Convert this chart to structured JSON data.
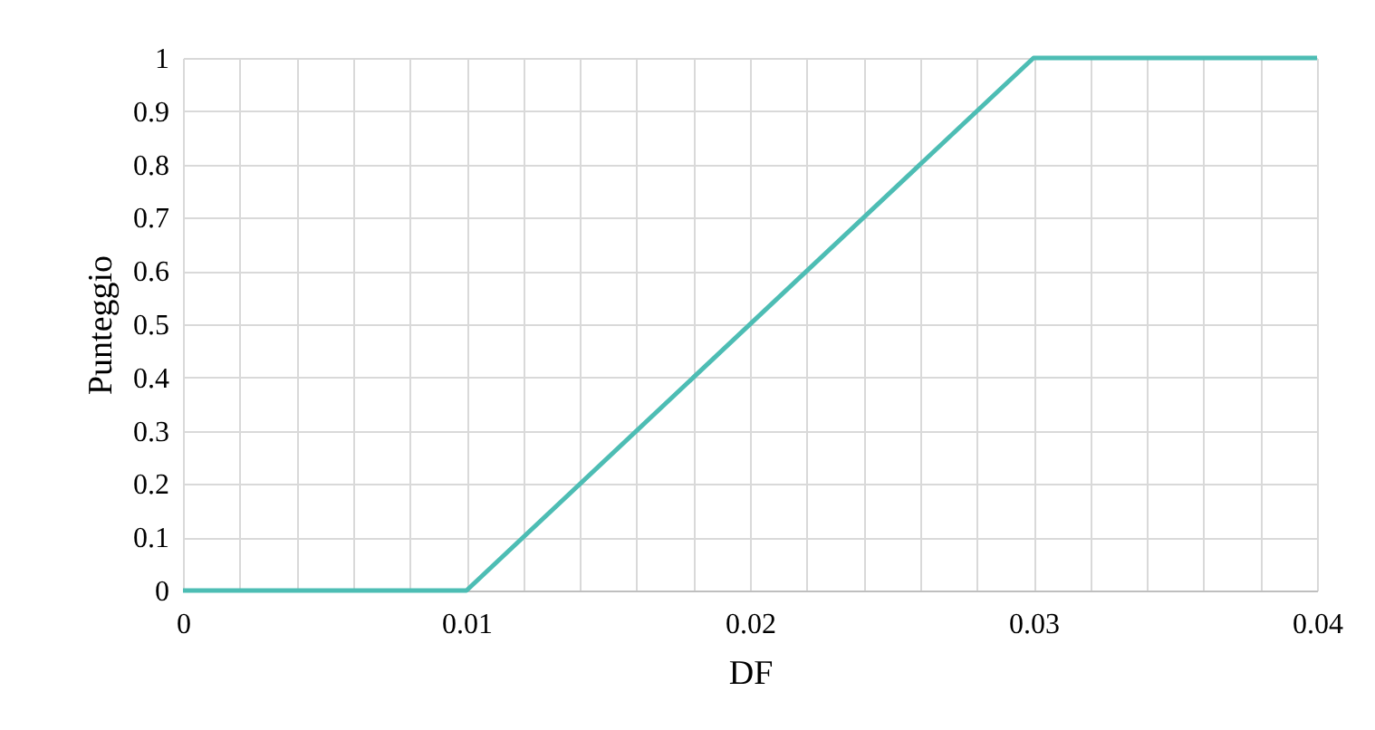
{
  "chart_data": {
    "type": "line",
    "xlabel": "DF",
    "ylabel": "Punteggio",
    "x": [
      0,
      0.01,
      0.03,
      0.04
    ],
    "series": [
      {
        "color": "#4dbdb4",
        "values": [
          0,
          0,
          1,
          1
        ]
      }
    ],
    "xlim": [
      0,
      0.04
    ],
    "xticks": [
      0,
      {
        "value": 0.002,
        "label": null
      },
      {
        "value": 0.004,
        "label": null
      },
      {
        "value": 0.006,
        "label": null
      },
      {
        "value": 0.008,
        "label": null
      },
      0.01,
      {
        "value": 0.012,
        "label": null
      },
      {
        "value": 0.014,
        "label": null
      },
      {
        "value": 0.016,
        "label": null
      },
      {
        "value": 0.018,
        "label": null
      },
      0.02,
      {
        "value": 0.022,
        "label": null
      },
      {
        "value": 0.024,
        "label": null
      },
      {
        "value": 0.026,
        "label": null
      },
      {
        "value": 0.028,
        "label": null
      },
      0.03,
      {
        "value": 0.032,
        "label": null
      },
      {
        "value": 0.034,
        "label": null
      },
      {
        "value": 0.036,
        "label": null
      },
      {
        "value": 0.038,
        "label": null
      },
      0.04
    ],
    "ylim": [
      0,
      1
    ],
    "yticks": [
      0,
      0.1,
      0.2,
      0.3,
      0.4,
      0.5,
      0.6,
      0.7,
      0.8,
      0.9,
      1
    ],
    "grid": true,
    "marker": "none",
    "line_style": "solid"
  }
}
